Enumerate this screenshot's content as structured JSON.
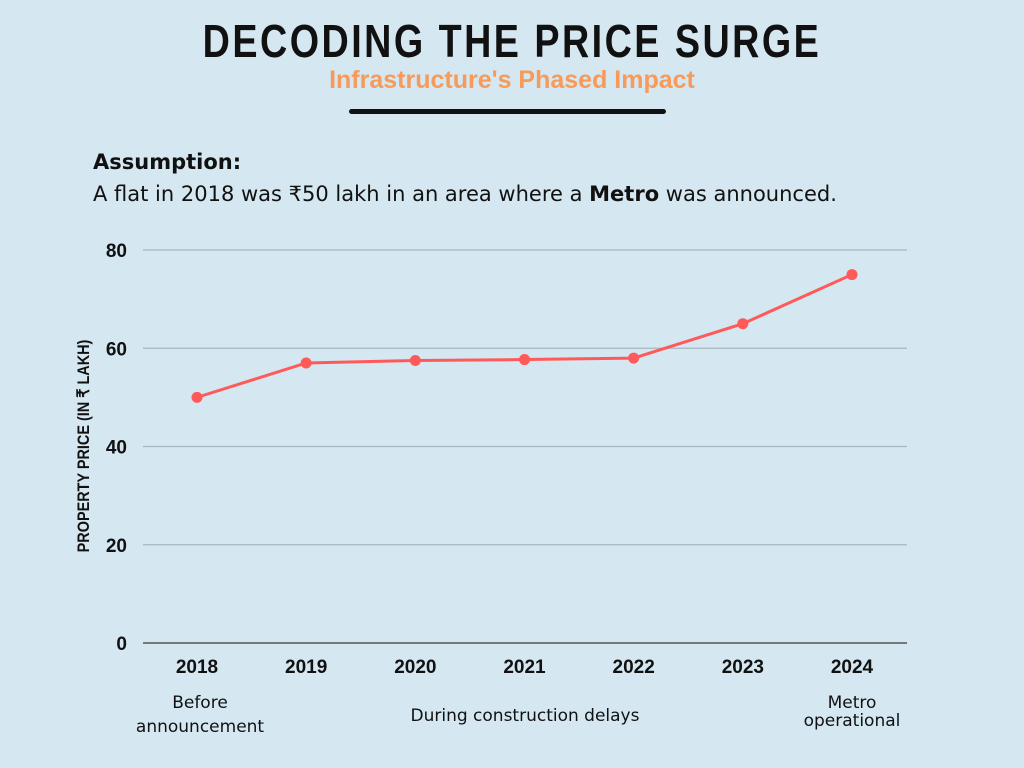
{
  "header": {
    "title": "DECODING THE PRICE SURGE",
    "subtitle": "Infrastructure's Phased Impact"
  },
  "assumption": {
    "heading": "Assumption:",
    "text_before": "A flat in 2018 was ₹50 lakh in an area where a ",
    "text_bold": "Metro",
    "text_after": " was announced."
  },
  "chart_data": {
    "type": "line",
    "title": "DECODING THE PRICE SURGE",
    "subtitle": "Infrastructure's Phased Impact",
    "categories": [
      "2018",
      "2019",
      "2020",
      "2021",
      "2022",
      "2023",
      "2024"
    ],
    "values": [
      50,
      57,
      57.5,
      57.7,
      58,
      65,
      75
    ],
    "xlabel": "",
    "ylabel": "PROPERTY PRICE (IN ₹ LAKH)",
    "ylim": [
      0,
      80
    ],
    "yticks": [
      0,
      20,
      40,
      60,
      80
    ],
    "grid": true,
    "line_color": "#ff5a5a",
    "annotations": [
      {
        "text": [
          "Before",
          "announcement"
        ],
        "at": "2018"
      },
      {
        "text": [
          "During construction delays"
        ],
        "at": "2020-2022"
      },
      {
        "text": [
          "Metro",
          "operational"
        ],
        "at": "2024"
      }
    ]
  }
}
